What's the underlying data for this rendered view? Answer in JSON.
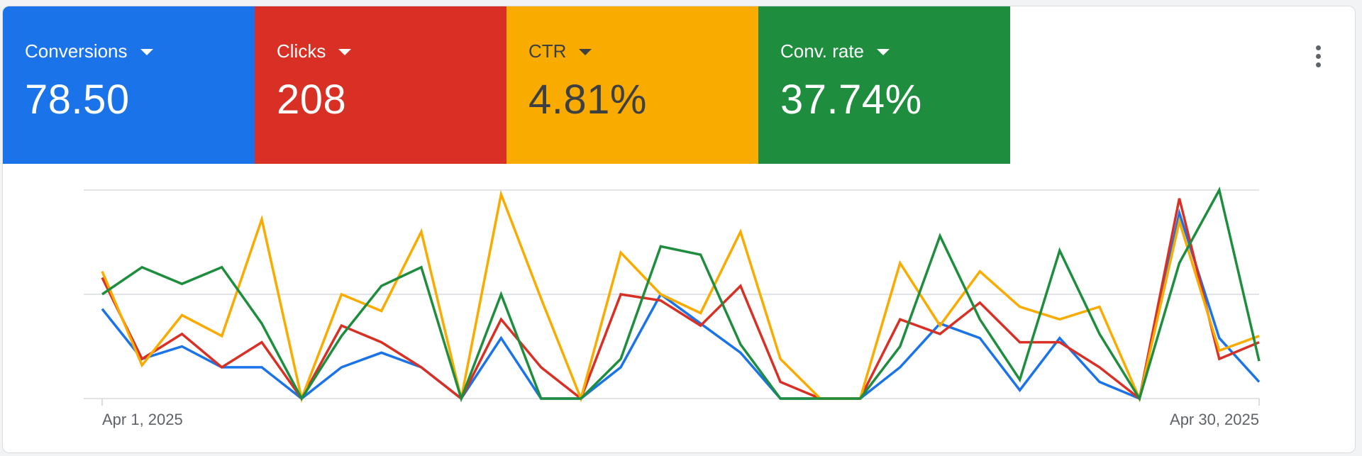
{
  "metrics": [
    {
      "label": "Conversions",
      "value": "78.50",
      "color": "#1a73e8",
      "text_color": "#ffffff"
    },
    {
      "label": "Clicks",
      "value": "208",
      "color": "#d93025",
      "text_color": "#ffffff"
    },
    {
      "label": "CTR",
      "value": "4.81%",
      "color": "#f9ab00",
      "text_color": "#3c4043"
    },
    {
      "label": "Conv. rate",
      "value": "37.74%",
      "color": "#1e8e3e",
      "text_color": "#ffffff"
    }
  ],
  "menu_icon": "more-vert-icon",
  "chart_data": {
    "type": "line",
    "x_start_label": "Apr 1, 2025",
    "x_end_label": "Apr 30, 2025",
    "x": [
      "Apr 1, 2025",
      "Apr 2, 2025",
      "Apr 3, 2025",
      "Apr 4, 2025",
      "Apr 5, 2025",
      "Apr 6, 2025",
      "Apr 7, 2025",
      "Apr 8, 2025",
      "Apr 9, 2025",
      "Apr 10, 2025",
      "Apr 11, 2025",
      "Apr 12, 2025",
      "Apr 13, 2025",
      "Apr 14, 2025",
      "Apr 15, 2025",
      "Apr 16, 2025",
      "Apr 17, 2025",
      "Apr 18, 2025",
      "Apr 19, 2025",
      "Apr 20, 2025",
      "Apr 21, 2025",
      "Apr 22, 2025",
      "Apr 23, 2025",
      "Apr 24, 2025",
      "Apr 25, 2025",
      "Apr 26, 2025",
      "Apr 27, 2025",
      "Apr 28, 2025",
      "Apr 29, 2025",
      "Apr 30, 2025"
    ],
    "ylim": [
      0,
      1
    ],
    "grid": true,
    "gridlines": [
      0,
      0.5,
      1
    ],
    "series": [
      {
        "color": "#1a73e8",
        "values": [
          0.43,
          0.19,
          0.25,
          0.15,
          0.15,
          0.0,
          0.15,
          0.22,
          0.15,
          0.0,
          0.29,
          0.0,
          0.0,
          0.15,
          0.5,
          0.36,
          0.22,
          0.0,
          0.0,
          0.0,
          0.15,
          0.36,
          0.29,
          0.04,
          0.29,
          0.08,
          0.0,
          0.89,
          0.29,
          0.08
        ]
      },
      {
        "color": "#d93025",
        "values": [
          0.58,
          0.19,
          0.31,
          0.15,
          0.27,
          0.0,
          0.35,
          0.27,
          0.15,
          0.0,
          0.38,
          0.15,
          0.0,
          0.5,
          0.47,
          0.35,
          0.54,
          0.08,
          0.0,
          0.0,
          0.38,
          0.31,
          0.46,
          0.27,
          0.27,
          0.15,
          0.0,
          0.96,
          0.19,
          0.27
        ]
      },
      {
        "color": "#f9ab00",
        "values": [
          0.61,
          0.16,
          0.4,
          0.3,
          0.86,
          0.0,
          0.5,
          0.42,
          0.8,
          0.0,
          0.98,
          0.48,
          0.0,
          0.7,
          0.5,
          0.41,
          0.8,
          0.19,
          0.0,
          0.0,
          0.65,
          0.35,
          0.61,
          0.44,
          0.38,
          0.44,
          0.0,
          0.85,
          0.23,
          0.3
        ]
      },
      {
        "color": "#1e8e3e",
        "values": [
          0.5,
          0.63,
          0.55,
          0.63,
          0.36,
          0.0,
          0.3,
          0.54,
          0.63,
          0.0,
          0.5,
          0.0,
          0.0,
          0.19,
          0.73,
          0.69,
          0.26,
          0.0,
          0.0,
          0.0,
          0.25,
          0.78,
          0.38,
          0.09,
          0.71,
          0.31,
          0.0,
          0.65,
          1.0,
          0.18
        ]
      }
    ]
  }
}
